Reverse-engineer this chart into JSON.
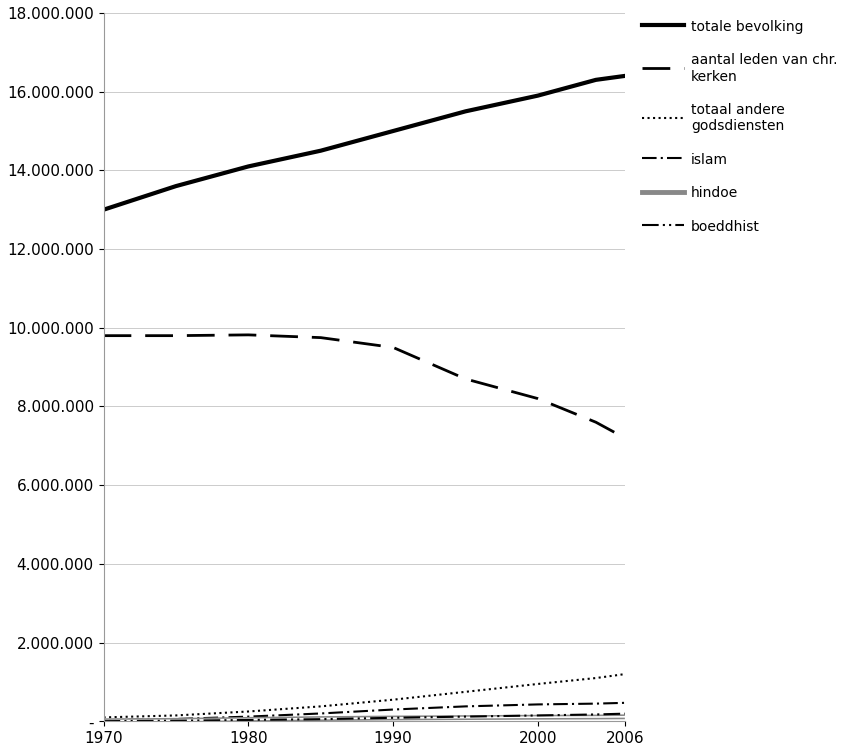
{
  "years": [
    1970,
    1975,
    1980,
    1985,
    1990,
    1995,
    2000,
    2004,
    2006
  ],
  "totale_bevolking": [
    13000000,
    13600000,
    14100000,
    14500000,
    15000000,
    15500000,
    15900000,
    16300000,
    16400000
  ],
  "chr_kerken": [
    9800000,
    9800000,
    9820000,
    9750000,
    9500000,
    8700000,
    8200000,
    7600000,
    7200000
  ],
  "andere_godsdiensten": [
    100000,
    150000,
    250000,
    380000,
    550000,
    750000,
    950000,
    1100000,
    1200000
  ],
  "islam": [
    30000,
    60000,
    120000,
    200000,
    300000,
    380000,
    430000,
    450000,
    470000
  ],
  "hindoe": [
    15000,
    25000,
    50000,
    70000,
    85000,
    95000,
    105000,
    110000,
    115000
  ],
  "boeddhist": [
    5000,
    15000,
    35000,
    55000,
    90000,
    120000,
    150000,
    175000,
    195000
  ],
  "ylim": [
    0,
    18000000
  ],
  "yticks": [
    0,
    2000000,
    4000000,
    6000000,
    8000000,
    10000000,
    12000000,
    14000000,
    16000000,
    18000000
  ],
  "ytick_labels": [
    "-",
    "2.000.000",
    "4.000.000",
    "6.000.000",
    "8.000.000",
    "10.000.000",
    "12.000.000",
    "14.000.000",
    "16.000.000",
    "18.000.000"
  ],
  "xticks": [
    1970,
    1980,
    1990,
    2000,
    2006
  ],
  "legend_labels": [
    "totale bevolking",
    "aantal leden van chr.\nkerken",
    "totaal andere\ngodsdiensten",
    "islam",
    "hindoe",
    "boeddhist"
  ],
  "background_color": "#ffffff",
  "figsize": [
    8.47,
    7.53
  ],
  "dpi": 100
}
